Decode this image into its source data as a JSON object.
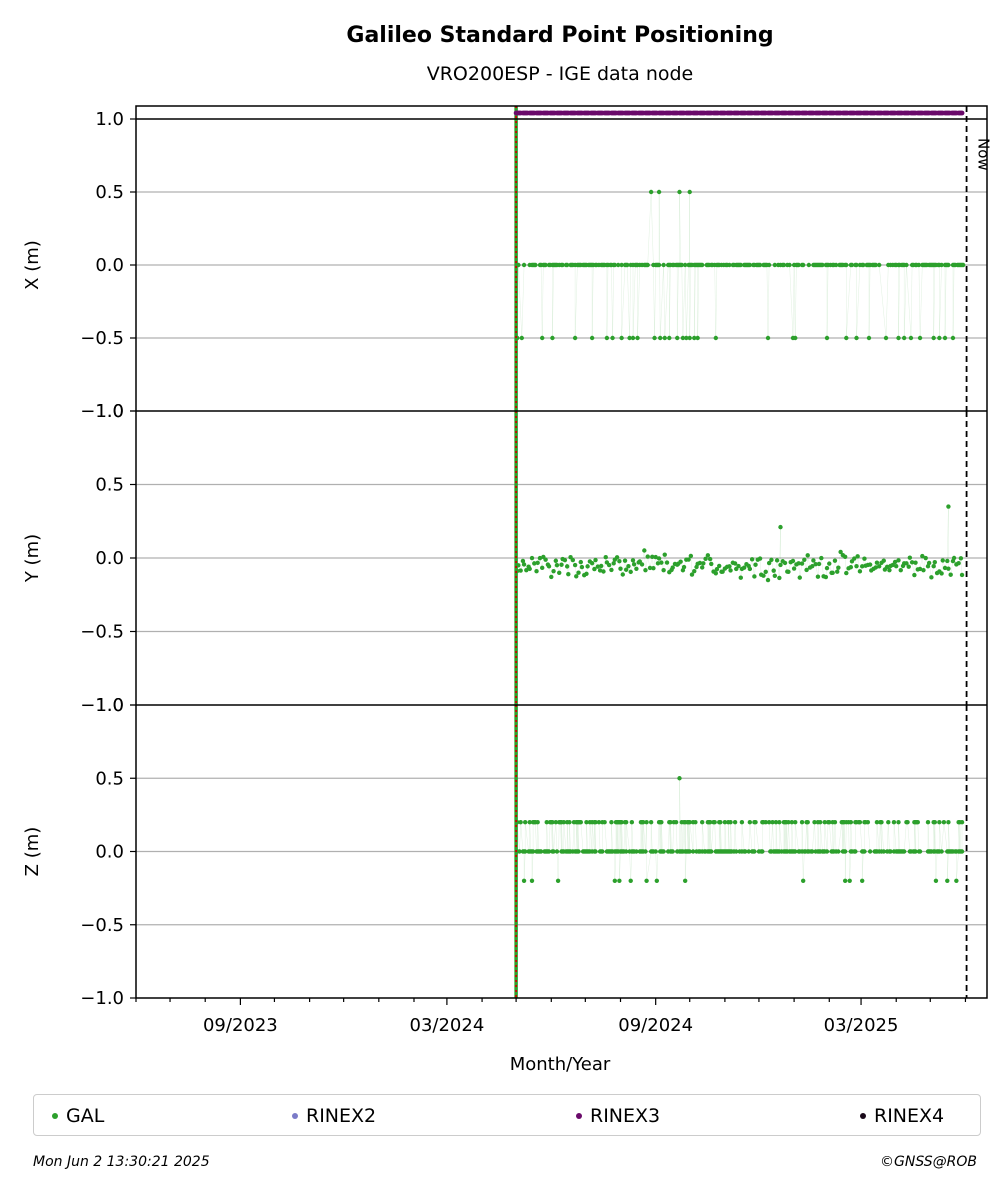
{
  "chart_data": {
    "type": "scatter",
    "title": "Galileo Standard Point Positioning",
    "subtitle": "VRO200ESP - IGE data node",
    "xlabel": "Month/Year",
    "x_tick_labels": [
      "09/2023",
      "03/2024",
      "09/2024",
      "03/2025"
    ],
    "x_range": [
      "2023-06-01",
      "2025-06-20"
    ],
    "start_marker_date": "2024-05-01",
    "now_date": "2025-06-02",
    "now_label": "Now",
    "panels": [
      {
        "ylabel": "X (m)",
        "ylim": [
          -1.0,
          1.0
        ],
        "y_ticks": [
          1.0,
          0.5,
          0.0,
          -0.5,
          -1.0
        ],
        "grid": true,
        "series": [
          {
            "name": "GAL",
            "color": "#2ca02c",
            "pattern": "quantized",
            "levels": [
              0.0,
              -0.5,
              0.5
            ],
            "points": [
              [
                "2024-08-28",
                0.5
              ],
              [
                "2024-09-04",
                0.5
              ],
              [
                "2024-09-22",
                0.5
              ],
              [
                "2024-10-01",
                0.5
              ],
              [
                "2024-05-02",
                -0.5
              ],
              [
                "2024-05-06",
                -0.5
              ],
              [
                "2024-05-24",
                -0.5
              ],
              [
                "2024-06-02",
                -0.5
              ],
              [
                "2024-06-22",
                -0.5
              ],
              [
                "2024-07-07",
                -0.5
              ],
              [
                "2024-07-20",
                -0.5
              ],
              [
                "2024-07-25",
                -0.5
              ],
              [
                "2024-08-02",
                -0.5
              ],
              [
                "2024-08-09",
                -0.5
              ],
              [
                "2024-08-12",
                -0.5
              ],
              [
                "2024-08-16",
                -0.5
              ],
              [
                "2024-08-31",
                -0.5
              ],
              [
                "2024-09-05",
                -0.5
              ],
              [
                "2024-09-09",
                -0.5
              ],
              [
                "2024-09-13",
                -0.5
              ],
              [
                "2024-09-20",
                -0.5
              ],
              [
                "2024-09-25",
                -0.5
              ],
              [
                "2024-09-28",
                -0.5
              ],
              [
                "2024-10-01",
                -0.5
              ],
              [
                "2024-10-05",
                -0.5
              ],
              [
                "2024-10-08",
                -0.5
              ],
              [
                "2024-10-24",
                -0.5
              ],
              [
                "2024-12-09",
                -0.5
              ],
              [
                "2024-12-31",
                -0.5
              ],
              [
                "2025-01-02",
                -0.5
              ],
              [
                "2025-01-30",
                -0.5
              ],
              [
                "2025-02-16",
                -0.5
              ],
              [
                "2025-02-25",
                -0.5
              ],
              [
                "2025-03-08",
                -0.5
              ],
              [
                "2025-03-23",
                -0.5
              ],
              [
                "2025-04-03",
                -0.5
              ],
              [
                "2025-04-08",
                -0.5
              ],
              [
                "2025-04-14",
                -0.5
              ],
              [
                "2025-04-22",
                -0.5
              ],
              [
                "2025-05-04",
                -0.5
              ],
              [
                "2025-05-09",
                -0.5
              ],
              [
                "2025-05-14",
                -0.5
              ],
              [
                "2025-05-21",
                -0.5
              ]
            ]
          }
        ]
      },
      {
        "ylabel": "Y (m)",
        "ylim": [
          -1.0,
          1.0
        ],
        "y_ticks": [
          1.0,
          0.5,
          0.0,
          -0.5,
          -1.0
        ],
        "grid": true,
        "series": [
          {
            "name": "GAL",
            "color": "#2ca02c",
            "pattern": "noise",
            "noise_range": [
              -0.15,
              0.11
            ],
            "points": [
              [
                "2024-12-20",
                0.21
              ],
              [
                "2025-05-17",
                0.35
              ]
            ]
          }
        ]
      },
      {
        "ylabel": "Z (m)",
        "ylim": [
          -1.0,
          1.0
        ],
        "y_ticks": [
          1.0,
          0.5,
          0.0,
          -0.5,
          -1.0
        ],
        "grid": true,
        "series": [
          {
            "name": "GAL",
            "color": "#2ca02c",
            "pattern": "quantized",
            "levels": [
              0.0,
              0.2,
              -0.2
            ],
            "points": [
              [
                "2024-09-22",
                0.5
              ],
              [
                "2024-05-08",
                -0.2
              ],
              [
                "2024-05-15",
                -0.2
              ],
              [
                "2024-06-07",
                -0.2
              ],
              [
                "2024-07-27",
                -0.2
              ],
              [
                "2024-07-31",
                -0.2
              ],
              [
                "2024-08-10",
                -0.2
              ],
              [
                "2024-08-24",
                -0.2
              ],
              [
                "2024-09-02",
                -0.2
              ],
              [
                "2024-09-27",
                -0.2
              ],
              [
                "2025-01-09",
                -0.2
              ],
              [
                "2025-02-15",
                -0.2
              ],
              [
                "2025-02-19",
                -0.2
              ],
              [
                "2025-03-02",
                -0.2
              ],
              [
                "2025-05-06",
                -0.2
              ],
              [
                "2025-05-16",
                -0.2
              ],
              [
                "2025-05-24",
                -0.2
              ]
            ]
          }
        ]
      }
    ],
    "rinex_strip": {
      "series": "RINEX3",
      "color": "#6a0a6a",
      "start": "2024-05-01",
      "end": "2025-05-30"
    },
    "legend": {
      "placement": "bottom",
      "entries": [
        {
          "label": "GAL",
          "color": "#2ca02c"
        },
        {
          "label": "RINEX2",
          "color": "#7b7bc8"
        },
        {
          "label": "RINEX3",
          "color": "#6a0a6a"
        },
        {
          "label": "RINEX4",
          "color": "#1a0a1a"
        }
      ]
    },
    "start_line_colors": {
      "outer": "#2ca02c",
      "inner": "#cc0000"
    }
  },
  "footer": {
    "timestamp": "Mon Jun  2 13:30:21 2025",
    "credit": "©GNSS@ROB"
  }
}
